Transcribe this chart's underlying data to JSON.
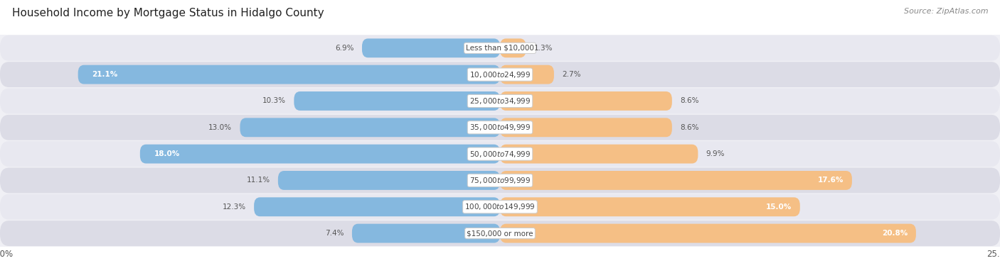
{
  "title": "Household Income by Mortgage Status in Hidalgo County",
  "source": "Source: ZipAtlas.com",
  "categories": [
    "Less than $10,000",
    "$10,000 to $24,999",
    "$25,000 to $34,999",
    "$35,000 to $49,999",
    "$50,000 to $74,999",
    "$75,000 to $99,999",
    "$100,000 to $149,999",
    "$150,000 or more"
  ],
  "without_mortgage": [
    6.9,
    21.1,
    10.3,
    13.0,
    18.0,
    11.1,
    12.3,
    7.4
  ],
  "with_mortgage": [
    1.3,
    2.7,
    8.6,
    8.6,
    9.9,
    17.6,
    15.0,
    20.8
  ],
  "color_without": "#85b8df",
  "color_with": "#f5bf85",
  "bg_chart": "#f0f0f5",
  "bg_title": "#ffffff",
  "row_colors": [
    "#e8e8f0",
    "#dcdce6"
  ],
  "axis_limit": 25.0,
  "title_fontsize": 11,
  "category_fontsize": 7.5,
  "value_fontsize": 7.5,
  "legend_fontsize": 8.5,
  "source_fontsize": 8
}
